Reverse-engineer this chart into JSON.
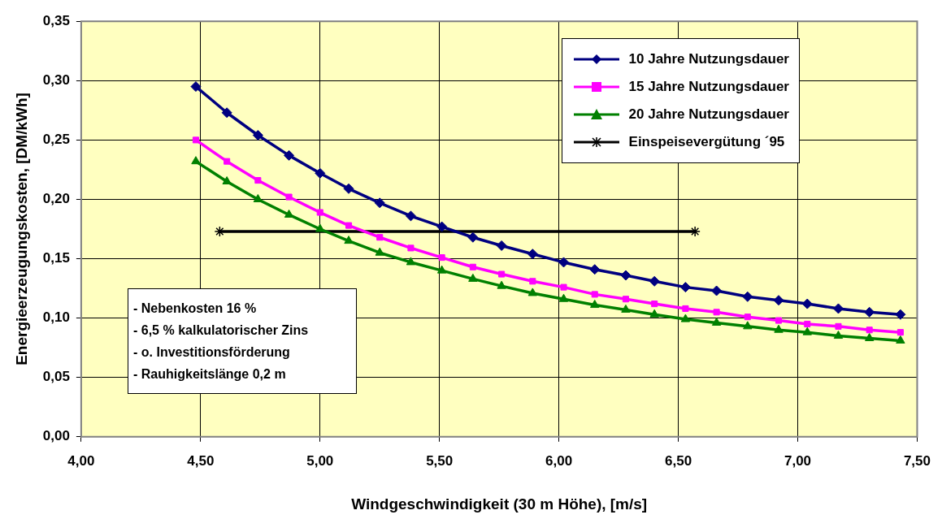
{
  "chart_data": {
    "type": "line",
    "xlabel": "Windgeschwindigkeit (30 m Höhe), [m/s]",
    "ylabel": "Energieerzeugungskosten, [DM/kWh]",
    "xlim": [
      4.0,
      7.5
    ],
    "xticks": [
      {
        "value": 4.0,
        "label": "4,00"
      },
      {
        "value": 4.5,
        "label": "4,50"
      },
      {
        "value": 5.0,
        "label": "5,00"
      },
      {
        "value": 5.5,
        "label": "5,50"
      },
      {
        "value": 6.0,
        "label": "6,00"
      },
      {
        "value": 6.5,
        "label": "6,50"
      },
      {
        "value": 7.0,
        "label": "7,00"
      },
      {
        "value": 7.5,
        "label": "7,50"
      }
    ],
    "ylim": [
      0,
      0.35
    ],
    "yticks": [
      {
        "value": 0,
        "label": "0,00"
      },
      {
        "value": 0.05,
        "label": "0,05"
      },
      {
        "value": 0.1,
        "label": "0,10"
      },
      {
        "value": 0.15,
        "label": "0,15"
      },
      {
        "value": 0.2,
        "label": "0,20"
      },
      {
        "value": 0.25,
        "label": "0,25"
      },
      {
        "value": 0.3,
        "label": "0,30"
      },
      {
        "value": 0.35,
        "label": "0,35"
      }
    ],
    "grid": true,
    "legend": "top right",
    "line_style": "solid",
    "x": [
      4.48,
      4.61,
      4.74,
      4.87,
      5.0,
      5.12,
      5.25,
      5.38,
      5.51,
      5.64,
      5.76,
      5.89,
      6.02,
      6.15,
      6.28,
      6.4,
      6.53,
      6.66,
      6.79,
      6.92,
      7.04,
      7.17,
      7.3,
      7.43
    ],
    "series": [
      {
        "name": "10 Jahre Nutzungsdauer",
        "color": "#000080",
        "marker": "diamond",
        "values": [
          0.295,
          0.273,
          0.254,
          0.237,
          0.222,
          0.209,
          0.197,
          0.186,
          0.177,
          0.168,
          0.161,
          0.154,
          0.147,
          0.141,
          0.136,
          0.131,
          0.126,
          0.123,
          0.118,
          0.115,
          0.112,
          0.108,
          0.105,
          0.103
        ]
      },
      {
        "name": "15 Jahre Nutzungsdauer",
        "color": "#ff00ff",
        "marker": "square",
        "values": [
          0.25,
          0.232,
          0.216,
          0.202,
          0.189,
          0.178,
          0.168,
          0.159,
          0.151,
          0.143,
          0.137,
          0.131,
          0.126,
          0.12,
          0.116,
          0.112,
          0.108,
          0.105,
          0.101,
          0.098,
          0.095,
          0.093,
          0.09,
          0.088
        ]
      },
      {
        "name": "20 Jahre Nutzungsdauer",
        "color": "#008000",
        "marker": "triangle",
        "values": [
          0.232,
          0.215,
          0.2,
          0.187,
          0.175,
          0.165,
          0.155,
          0.147,
          0.14,
          0.133,
          0.127,
          0.121,
          0.116,
          0.111,
          0.107,
          0.103,
          0.099,
          0.096,
          0.093,
          0.09,
          0.088,
          0.085,
          0.083,
          0.081
        ]
      },
      {
        "name": "Einspeisevergütung ´95",
        "color": "#000000",
        "marker": "cross",
        "x": [
          4.58,
          6.57
        ],
        "values": [
          0.173,
          0.173
        ]
      }
    ],
    "annotations": [
      "- Nebenkosten 16 %",
      "- 6,5 % kalkulatorischer Zins",
      "- o. Investitionsförderung",
      "- Rauhigkeitslänge 0,2 m"
    ]
  }
}
